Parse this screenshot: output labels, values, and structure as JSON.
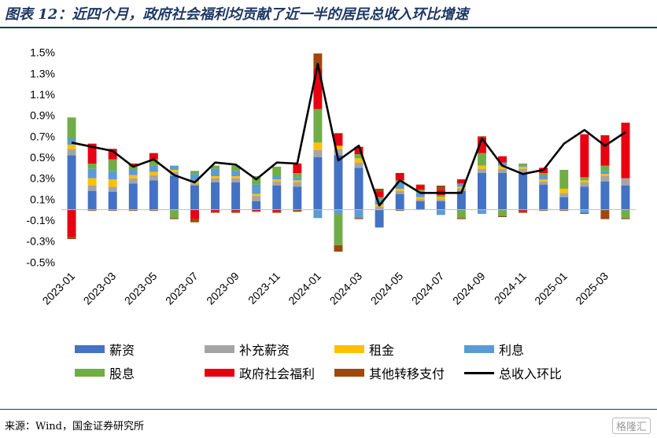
{
  "title": "图表 12：近四个月，政府社会福利均贡献了近一半的居民总收入环比增速",
  "source": "来源：Wind，国金证券研究所",
  "watermark": "格隆汇",
  "chart_data": {
    "type": "bar",
    "stacked": true,
    "categories": [
      "2023-01",
      "2023-02",
      "2023-03",
      "2023-04",
      "2023-05",
      "2023-06",
      "2023-07",
      "2023-08",
      "2023-09",
      "2023-10",
      "2023-11",
      "2023-12",
      "2024-01",
      "2024-02",
      "2024-03",
      "2024-04",
      "2024-05",
      "2024-06",
      "2024-07",
      "2024-08",
      "2024-09",
      "2024-10",
      "2024-11",
      "2024-12",
      "2025-01",
      "2025-02",
      "2025-03",
      "2025-04"
    ],
    "tick_labels": [
      "2023-01",
      "",
      "2023-03",
      "",
      "2023-05",
      "",
      "2023-07",
      "",
      "2023-09",
      "",
      "2023-11",
      "",
      "2024-01",
      "",
      "2024-03",
      "",
      "2024-05",
      "",
      "2024-07",
      "",
      "2024-09",
      "",
      "2024-11",
      "",
      "2025-01",
      "",
      "2025-03",
      ""
    ],
    "y_ticks": [
      -0.5,
      -0.3,
      -0.1,
      0.1,
      0.3,
      0.5,
      0.7,
      0.9,
      1.1,
      1.3,
      1.5
    ],
    "y_tick_labels": [
      "-0.5%",
      "-0.3%",
      "-0.1%",
      "0.1%",
      "0.3%",
      "0.5%",
      "0.7%",
      "0.9%",
      "1.1%",
      "1.3%",
      "1.5%"
    ],
    "ylim": [
      -0.55,
      1.55
    ],
    "series": [
      {
        "name": "薪资",
        "color": "#4472c4",
        "values": [
          0.52,
          0.18,
          0.17,
          0.25,
          0.28,
          0.32,
          0.23,
          0.26,
          0.26,
          0.08,
          0.23,
          0.22,
          0.5,
          0.52,
          0.4,
          -0.17,
          0.15,
          0.08,
          0.08,
          0.18,
          0.35,
          0.35,
          0.35,
          0.24,
          0.12,
          0.22,
          0.27,
          0.23
        ]
      },
      {
        "name": "补充薪资",
        "color": "#a5a5a5",
        "values": [
          0.06,
          0.05,
          0.05,
          0.05,
          0.05,
          0.04,
          0.02,
          0.04,
          0.04,
          0.05,
          0.04,
          0.04,
          0.07,
          0.06,
          0.05,
          0.03,
          0.03,
          0.02,
          0.02,
          0.02,
          0.04,
          0.04,
          0.04,
          0.03,
          0.04,
          0.04,
          0.05,
          0.07
        ]
      },
      {
        "name": "租金",
        "color": "#ffc000",
        "values": [
          0.04,
          0.07,
          0.07,
          0.03,
          0.03,
          0.02,
          0.02,
          0.02,
          0.02,
          0.02,
          0.02,
          0.02,
          0.07,
          0.03,
          0.04,
          0.02,
          0.02,
          0.02,
          0.02,
          0.02,
          0.03,
          0.03,
          0.02,
          0.02,
          0.04,
          0.02,
          0.02,
          0.0
        ]
      },
      {
        "name": "利息",
        "color": "#5b9bd5",
        "values": [
          0.06,
          0.09,
          0.08,
          0.05,
          0.06,
          0.04,
          0.07,
          0.07,
          0.05,
          0.09,
          0.03,
          0.03,
          -0.08,
          -0.04,
          -0.08,
          0.05,
          0.06,
          0.04,
          -0.05,
          0.03,
          -0.04,
          0.03,
          0.01,
          0.03,
          0.0,
          -0.03,
          0.03,
          0.0
        ]
      },
      {
        "name": "股息",
        "color": "#70ad47",
        "values": [
          0.2,
          0.05,
          0.11,
          0.04,
          0.06,
          -0.08,
          0.03,
          0.03,
          0.05,
          0.08,
          0.09,
          0.04,
          0.32,
          -0.3,
          0.04,
          0.02,
          0.02,
          0.03,
          0.02,
          -0.08,
          0.12,
          -0.06,
          0.02,
          0.03,
          0.18,
          0.03,
          0.05,
          -0.08
        ]
      },
      {
        "name": "政府社会福利",
        "color": "#e60012",
        "values": [
          -0.26,
          0.19,
          0.1,
          0.02,
          0.06,
          0.0,
          -0.09,
          -0.02,
          -0.01,
          -0.01,
          -0.02,
          0.09,
          0.39,
          0.12,
          0.07,
          0.05,
          0.07,
          0.04,
          0.05,
          0.04,
          0.15,
          0.06,
          -0.01,
          0.05,
          0.0,
          0.41,
          0.29,
          0.53
        ]
      },
      {
        "name": "其他转移支付",
        "color": "#9e480e",
        "values": [
          -0.02,
          -0.01,
          -0.01,
          -0.01,
          -0.01,
          -0.01,
          -0.03,
          -0.01,
          -0.02,
          -0.01,
          -0.01,
          -0.02,
          0.14,
          -0.06,
          -0.01,
          0.03,
          -0.01,
          0.01,
          0.04,
          -0.01,
          0.01,
          -0.01,
          -0.02,
          -0.01,
          -0.01,
          -0.01,
          -0.09,
          -0.01
        ]
      }
    ],
    "line": {
      "name": "总收入环比",
      "color": "#000000",
      "values": [
        0.64,
        0.6,
        0.56,
        0.41,
        0.48,
        0.33,
        0.26,
        0.45,
        0.43,
        0.29,
        0.45,
        0.44,
        1.39,
        0.47,
        0.61,
        0.04,
        0.28,
        0.16,
        0.16,
        0.16,
        0.68,
        0.42,
        0.34,
        0.38,
        0.63,
        0.76,
        0.61,
        0.74
      ]
    },
    "legend": {
      "position": "bottom",
      "entries": [
        "薪资",
        "补充薪资",
        "租金",
        "利息",
        "股息",
        "政府社会福利",
        "其他转移支付",
        "总收入环比"
      ]
    }
  }
}
